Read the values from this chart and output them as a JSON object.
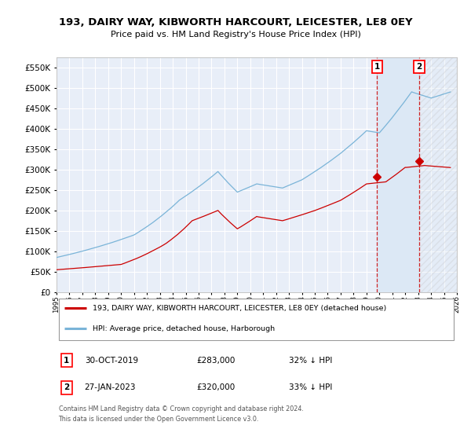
{
  "title": "193, DAIRY WAY, KIBWORTH HARCOURT, LEICESTER, LE8 0EY",
  "subtitle": "Price paid vs. HM Land Registry's House Price Index (HPI)",
  "ylim": [
    0,
    575000
  ],
  "yticks": [
    0,
    50000,
    100000,
    150000,
    200000,
    250000,
    300000,
    350000,
    400000,
    450000,
    500000,
    550000
  ],
  "background_color": "#ffffff",
  "plot_bg_color": "#e8eef8",
  "grid_color": "#ffffff",
  "hpi_color": "#7ab4d8",
  "price_color": "#cc0000",
  "shade_color": "#dce8f5",
  "hatch_color": "#cccccc",
  "legend_label_price": "193, DAIRY WAY, KIBWORTH HARCOURT, LEICESTER, LE8 0EY (detached house)",
  "legend_label_hpi": "HPI: Average price, detached house, Harborough",
  "annotation1_label": "1",
  "annotation1_date": "30-OCT-2019",
  "annotation1_price": "£283,000",
  "annotation1_hpi": "32% ↓ HPI",
  "annotation2_label": "2",
  "annotation2_date": "27-JAN-2023",
  "annotation2_price": "£320,000",
  "annotation2_hpi": "33% ↓ HPI",
  "footnote": "Contains HM Land Registry data © Crown copyright and database right 2024.\nThis data is licensed under the Open Government Licence v3.0.",
  "sale1_x": 2019.83,
  "sale1_y": 283000,
  "sale2_x": 2023.08,
  "sale2_y": 320000,
  "xmin": 1995,
  "xmax": 2026
}
